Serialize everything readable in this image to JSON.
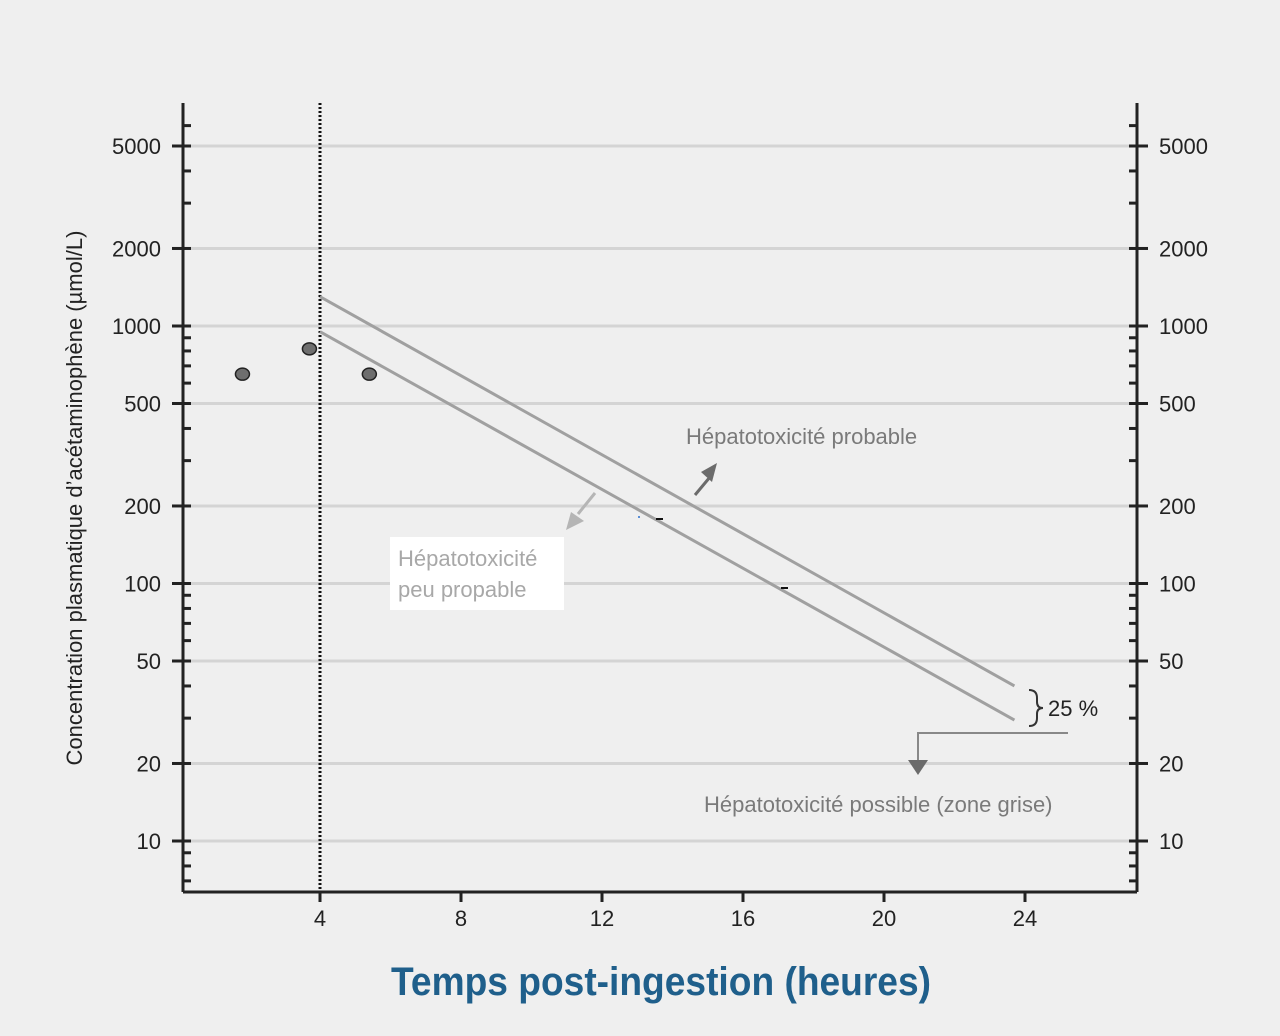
{
  "chart_data": {
    "type": "line",
    "title": "",
    "xlabel": "Temps post-ingestion (heures)",
    "ylabel": "Concentration plasmatique d’acétaminophène (µmol/L)",
    "y_scale": "log",
    "xlim": [
      0,
      27.5
    ],
    "ylim": [
      6,
      7000
    ],
    "x_ticks": [
      4,
      8,
      12,
      16,
      20,
      24
    ],
    "y_ticks": [
      5000,
      2000,
      1000,
      500,
      200,
      100,
      50,
      20,
      10
    ],
    "grid": true,
    "reference_line": {
      "x": 4,
      "style": "dotted"
    },
    "series": [
      {
        "name": "Hépatotoxicité probable",
        "x": [
          4,
          23.7
        ],
        "y": [
          1300,
          40
        ]
      },
      {
        "name": "Hépatotoxicité possible (zone grise)",
        "x": [
          4,
          23.7
        ],
        "y": [
          950,
          29.5
        ]
      }
    ],
    "points": [
      {
        "x": 1.8,
        "y": 650
      },
      {
        "x": 3.7,
        "y": 815
      },
      {
        "x": 5.4,
        "y": 650
      }
    ],
    "annotations": {
      "probable": "Hépatotoxicité probable",
      "peu_line1": "Hépatotoxicité",
      "peu_line2": "peu propable",
      "possible": "Hépatotoxicité possible (zone grise)",
      "percent": "25 %"
    },
    "colors": {
      "line": "#a0a0a0",
      "axis": "#222222",
      "grid": "#d4d4d4",
      "point": "#6e6e6e",
      "arrow_dark": "#6b6b6b",
      "arrow_light": "#b5b5b5",
      "title": "#1f5f8b"
    }
  }
}
